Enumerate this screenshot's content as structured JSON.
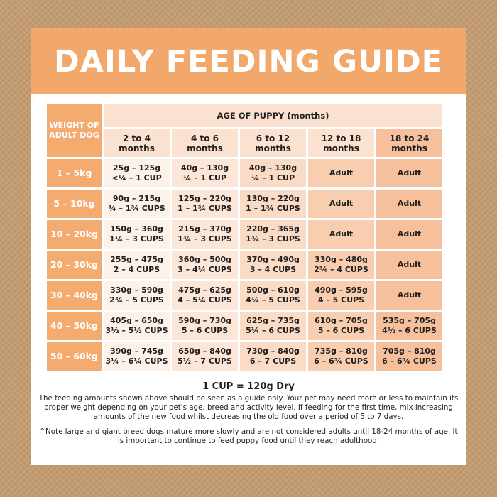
{
  "title": "DAILY FEEDING GUIDE",
  "table": {
    "weight_header": "WEIGHT OF ADULT DOG",
    "age_header": "AGE OF PUPPY (months)",
    "age_columns": [
      "2 to 4 months",
      "4 to 6 months",
      "6 to 12 months",
      "12 to 18 months",
      "18 to 24 months"
    ],
    "rows": [
      {
        "weight": "1 – 5kg",
        "cells": [
          {
            "grams": "25g – 125g",
            "cups": "<¼ – 1 CUP"
          },
          {
            "grams": "40g – 130g",
            "cups": "¼ – 1 CUP"
          },
          {
            "grams": "40g – 130g",
            "cups": "¼ – 1 CUP"
          },
          {
            "grams": "Adult",
            "cups": ""
          },
          {
            "grams": "Adult",
            "cups": ""
          }
        ]
      },
      {
        "weight": "5 – 10kg",
        "cells": [
          {
            "grams": "90g – 215g",
            "cups": "¾ – 1¾ CUPS"
          },
          {
            "grams": "125g – 220g",
            "cups": "1 – 1¾ CUPS"
          },
          {
            "grams": "130g – 220g",
            "cups": "1 – 1¾ CUPS"
          },
          {
            "grams": "Adult",
            "cups": ""
          },
          {
            "grams": "Adult",
            "cups": ""
          }
        ]
      },
      {
        "weight": "10 – 20kg",
        "cells": [
          {
            "grams": "150g – 360g",
            "cups": "1¼ – 3 CUPS"
          },
          {
            "grams": "215g – 370g",
            "cups": "1¾ – 3 CUPS"
          },
          {
            "grams": "220g – 365g",
            "cups": "1¾ – 3 CUPS"
          },
          {
            "grams": "Adult",
            "cups": ""
          },
          {
            "grams": "Adult",
            "cups": ""
          }
        ]
      },
      {
        "weight": "20 – 30kg",
        "cells": [
          {
            "grams": "255g – 475g",
            "cups": "2 – 4 CUPS"
          },
          {
            "grams": "360g – 500g",
            "cups": "3 – 4¼ CUPS"
          },
          {
            "grams": "370g – 490g",
            "cups": "3 – 4 CUPS"
          },
          {
            "grams": "330g – 480g",
            "cups": "2¾ – 4 CUPS"
          },
          {
            "grams": "Adult",
            "cups": ""
          }
        ]
      },
      {
        "weight": "30 – 40kg",
        "cells": [
          {
            "grams": "330g – 590g",
            "cups": "2¾ – 5 CUPS"
          },
          {
            "grams": "475g – 625g",
            "cups": "4 – 5¼ CUPS"
          },
          {
            "grams": "500g – 610g",
            "cups": "4¼ – 5 CUPS"
          },
          {
            "grams": "490g – 595g",
            "cups": "4 – 5 CUPS"
          },
          {
            "grams": "Adult",
            "cups": ""
          }
        ]
      },
      {
        "weight": "40 – 50kg",
        "cells": [
          {
            "grams": "405g – 650g",
            "cups": "3½ – 5½ CUPS"
          },
          {
            "grams": "590g – 730g",
            "cups": "5 – 6 CUPS"
          },
          {
            "grams": "625g – 735g",
            "cups": "5¼ – 6 CUPS"
          },
          {
            "grams": "610g – 705g",
            "cups": "5 – 6 CUPS"
          },
          {
            "grams": "535g – 705g",
            "cups": "4½ – 6 CUPS"
          }
        ]
      },
      {
        "weight": "50 – 60kg",
        "cells": [
          {
            "grams": "390g – 745g",
            "cups": "3¼ – 6¼ CUPS"
          },
          {
            "grams": "650g – 840g",
            "cups": "5½ – 7 CUPS"
          },
          {
            "grams": "730g – 840g",
            "cups": "6 – 7 CUPS"
          },
          {
            "grams": "735g – 810g",
            "cups": "6 – 6¾ CUPS"
          },
          {
            "grams": "705g – 810g",
            "cups": "6 – 6¾ CUPS"
          }
        ]
      }
    ]
  },
  "footer": {
    "cup_conversion": "1 CUP = 120g Dry",
    "note": "The feeding amounts shown above should be seen as a guide only. Your pet may need more or less to maintain its proper weight depending on your pet's age, breed and activity level. If feeding for the first time, mix increasing amounts of the new food whilst decreasing the old food over a period of 5 to 7 days.",
    "footnote": "^Note large and giant breed dogs mature more slowly and are not considered adults until 18-24 months of age. It is important to continue to feed puppy food until they reach adulthood."
  },
  "colors": {
    "background": "#c49c72",
    "header": "#f2a76b",
    "weight_column": "#f3ab70",
    "column_shades": [
      "#fdf2ea",
      "#fbe6d8",
      "#fadbc5",
      "#f8cdb0",
      "#f6c09c"
    ]
  }
}
